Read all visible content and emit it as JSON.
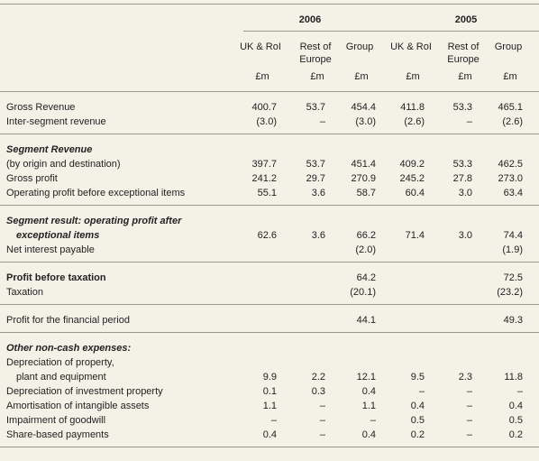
{
  "header": {
    "years": [
      "2006",
      "2005"
    ],
    "columns": [
      "UK & RoI",
      "Rest of Europe",
      "Group",
      "UK & RoI",
      "Rest of Europe",
      "Group"
    ],
    "units": [
      "£m",
      "£m",
      "£m",
      "£m",
      "£m",
      "£m"
    ]
  },
  "sections": [
    {
      "rows": [
        {
          "label": "Gross Revenue",
          "values": [
            "400.7",
            "53.7",
            "454.4",
            "411.8",
            "53.3",
            "465.1"
          ]
        },
        {
          "label": "Inter-segment revenue",
          "values": [
            "(3.0)",
            "–",
            "(3.0)",
            "(2.6)",
            "–",
            "(2.6)"
          ]
        }
      ]
    },
    {
      "rows": [
        {
          "label": "Segment Revenue",
          "style": "heading"
        },
        {
          "label": "(by origin and destination)",
          "values": [
            "397.7",
            "53.7",
            "451.4",
            "409.2",
            "53.3",
            "462.5"
          ]
        },
        {
          "label": "Gross profit",
          "values": [
            "241.2",
            "29.7",
            "270.9",
            "245.2",
            "27.8",
            "273.0"
          ]
        },
        {
          "label": "Operating profit before exceptional items",
          "values": [
            "55.1",
            "3.6",
            "58.7",
            "60.4",
            "3.0",
            "63.4"
          ]
        }
      ]
    },
    {
      "rows": [
        {
          "label": "Segment result: operating profit after",
          "style": "heading"
        },
        {
          "label": "exceptional items",
          "style": "heading-indent",
          "values": [
            "62.6",
            "3.6",
            "66.2",
            "71.4",
            "3.0",
            "74.4"
          ]
        },
        {
          "label": "Net interest payable",
          "values": [
            null,
            null,
            "(2.0)",
            null,
            null,
            "(1.9)"
          ]
        }
      ]
    },
    {
      "rows": [
        {
          "label": "Profit before taxation",
          "style": "bold",
          "values": [
            null,
            null,
            "64.2",
            null,
            null,
            "72.5"
          ]
        },
        {
          "label": "Taxation",
          "values": [
            null,
            null,
            "(20.1)",
            null,
            null,
            "(23.2)"
          ]
        }
      ]
    },
    {
      "rows": [
        {
          "label": "Profit for the financial period",
          "values": [
            null,
            null,
            "44.1",
            null,
            null,
            "49.3"
          ]
        }
      ]
    },
    {
      "rows": [
        {
          "label": "Other non-cash expenses:",
          "style": "heading"
        },
        {
          "label": "Depreciation of property,"
        },
        {
          "label": "plant and equipment",
          "style": "indent",
          "values": [
            "9.9",
            "2.2",
            "12.1",
            "9.5",
            "2.3",
            "11.8"
          ]
        },
        {
          "label": "Depreciation of investment property",
          "values": [
            "0.1",
            "0.3",
            "0.4",
            "–",
            "–",
            "–"
          ]
        },
        {
          "label": "Amortisation of intangible assets",
          "values": [
            "1.1",
            "–",
            "1.1",
            "0.4",
            "–",
            "0.4"
          ]
        },
        {
          "label": "Impairment of goodwill",
          "values": [
            "–",
            "–",
            "–",
            "0.5",
            "–",
            "0.5"
          ]
        },
        {
          "label": "Share-based payments",
          "values": [
            "0.4",
            "–",
            "0.4",
            "0.2",
            "–",
            "0.2"
          ]
        }
      ]
    }
  ]
}
